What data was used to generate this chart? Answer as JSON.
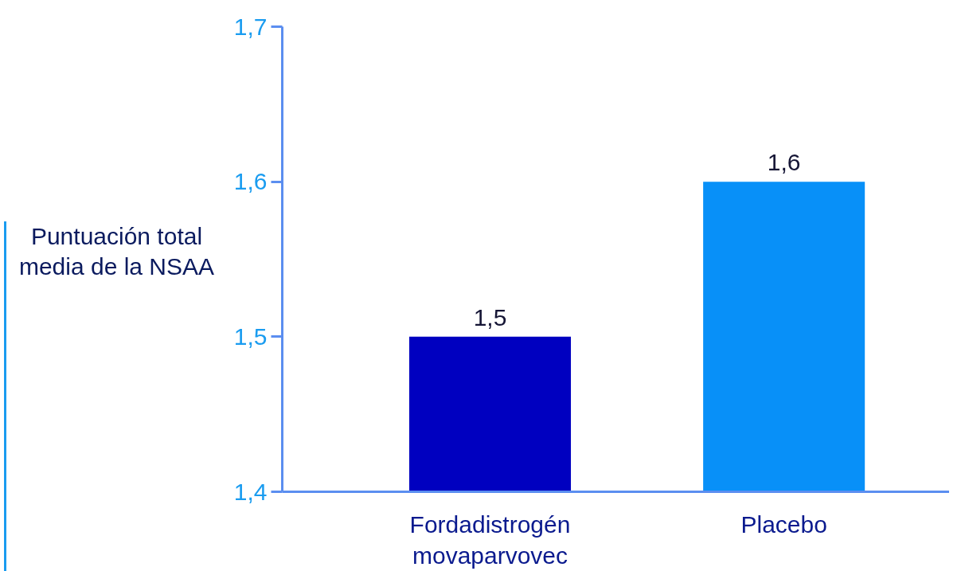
{
  "chart_data": {
    "type": "bar",
    "ylabel": "Puntuación total media de la NSAA",
    "categories": [
      "Fordadistrogén movaparvovec",
      "Placebo"
    ],
    "values": [
      1.5,
      1.6
    ],
    "colors": [
      "#0000c0",
      "#0890f8"
    ],
    "ylim": [
      1.4,
      1.7
    ],
    "yticks": [
      {
        "value": 1.4,
        "label": "1,4"
      },
      {
        "value": 1.5,
        "label": "1,5"
      },
      {
        "value": 1.6,
        "label": "1,6"
      },
      {
        "value": 1.7,
        "label": "1,7"
      }
    ],
    "value_labels": [
      "1,5",
      "1,6"
    ],
    "grid": false
  }
}
